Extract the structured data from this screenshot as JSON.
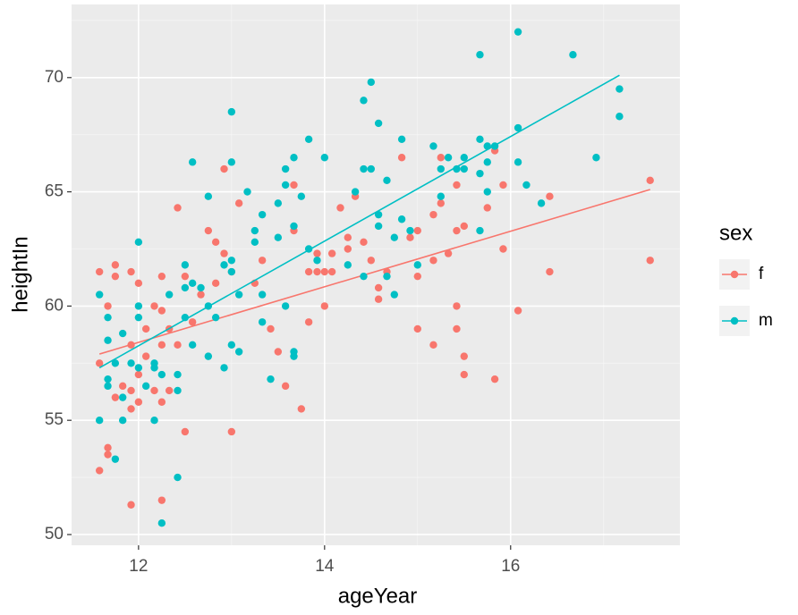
{
  "chart_data": {
    "type": "scatter",
    "x_label": "ageYear",
    "y_label": "heightIn",
    "legend_title": "sex",
    "xlim": [
      11.28,
      17.82
    ],
    "ylim": [
      49.53,
      73.2
    ],
    "xticks": [
      12,
      14,
      16
    ],
    "yticks": [
      50,
      55,
      60,
      65,
      70
    ],
    "grid": true,
    "legend": "right",
    "series": [
      {
        "name": "f",
        "color": "#F8766D",
        "x": [
          11.58,
          11.58,
          11.58,
          11.67,
          11.67,
          11.67,
          11.75,
          11.75,
          11.75,
          11.83,
          11.92,
          11.92,
          11.92,
          11.92,
          11.92,
          12.0,
          12.0,
          12.0,
          12.08,
          12.08,
          12.17,
          12.17,
          12.25,
          12.25,
          12.25,
          12.25,
          12.25,
          12.33,
          12.33,
          12.42,
          12.42,
          12.5,
          12.5,
          12.58,
          12.67,
          12.75,
          12.83,
          12.83,
          12.92,
          12.92,
          13.0,
          13.0,
          13.08,
          13.25,
          13.33,
          13.42,
          13.5,
          13.58,
          13.67,
          13.67,
          13.75,
          13.83,
          13.83,
          13.92,
          13.92,
          14.0,
          14.0,
          14.08,
          14.08,
          14.17,
          14.25,
          14.25,
          14.33,
          14.42,
          14.5,
          14.58,
          14.58,
          14.67,
          14.83,
          14.92,
          15.0,
          15.0,
          15.0,
          15.17,
          15.17,
          15.17,
          15.25,
          15.25,
          15.33,
          15.42,
          15.42,
          15.42,
          15.42,
          15.5,
          15.5,
          15.5,
          15.75,
          15.83,
          15.83,
          15.92,
          15.92,
          16.08,
          16.42,
          16.42,
          17.5,
          17.5
        ],
        "values": [
          61.5,
          57.5,
          52.8,
          60.0,
          53.8,
          53.5,
          61.8,
          61.3,
          56.0,
          56.5,
          61.5,
          58.3,
          56.3,
          55.5,
          51.3,
          61.0,
          57.0,
          55.8,
          59.0,
          57.8,
          60.0,
          56.3,
          61.3,
          59.8,
          58.3,
          55.8,
          51.5,
          59.0,
          56.3,
          64.3,
          58.3,
          61.3,
          54.5,
          59.3,
          60.5,
          63.3,
          62.8,
          61.0,
          66.0,
          62.3,
          54.5,
          61.5,
          64.5,
          61.0,
          62.0,
          59.0,
          58.0,
          56.5,
          65.3,
          63.3,
          55.5,
          59.3,
          61.5,
          62.3,
          61.5,
          61.5,
          60.0,
          62.3,
          61.5,
          64.3,
          63.0,
          62.5,
          64.8,
          62.8,
          62.0,
          60.8,
          60.3,
          61.5,
          66.5,
          63.0,
          63.3,
          61.3,
          59.0,
          64.0,
          62.0,
          58.3,
          66.5,
          64.5,
          62.3,
          65.3,
          63.3,
          60.0,
          59.0,
          63.5,
          57.8,
          57.0,
          64.3,
          66.8,
          56.8,
          65.3,
          62.5,
          59.8,
          64.8,
          61.5,
          65.5,
          62.0
        ],
        "fit": {
          "x": [
            11.58,
            17.5
          ],
          "values": [
            57.9,
            65.1
          ]
        }
      },
      {
        "name": "m",
        "color": "#00BFC4",
        "x": [
          11.58,
          11.58,
          11.67,
          11.67,
          11.67,
          11.67,
          11.75,
          11.75,
          11.83,
          11.83,
          11.83,
          11.92,
          12.0,
          12.0,
          12.0,
          12.0,
          12.08,
          12.17,
          12.17,
          12.17,
          12.25,
          12.25,
          12.33,
          12.42,
          12.42,
          12.42,
          12.5,
          12.5,
          12.5,
          12.58,
          12.58,
          12.58,
          12.67,
          12.75,
          12.75,
          12.75,
          12.83,
          12.92,
          12.92,
          13.0,
          13.0,
          13.0,
          13.0,
          13.0,
          13.08,
          13.08,
          13.17,
          13.25,
          13.25,
          13.33,
          13.33,
          13.33,
          13.42,
          13.5,
          13.5,
          13.58,
          13.58,
          13.58,
          13.67,
          13.67,
          13.67,
          13.67,
          13.75,
          13.83,
          13.83,
          13.92,
          14.0,
          14.25,
          14.33,
          14.42,
          14.42,
          14.42,
          14.5,
          14.5,
          14.58,
          14.58,
          14.58,
          14.67,
          14.67,
          14.75,
          14.75,
          14.83,
          14.83,
          14.92,
          15.0,
          15.17,
          15.25,
          15.25,
          15.33,
          15.42,
          15.5,
          15.5,
          15.67,
          15.67,
          15.67,
          15.67,
          15.75,
          15.75,
          15.75,
          15.83,
          16.08,
          16.08,
          16.08,
          16.17,
          16.33,
          16.67,
          16.92,
          17.17,
          17.17
        ],
        "values": [
          60.5,
          55.0,
          59.5,
          58.5,
          56.8,
          56.5,
          57.5,
          53.3,
          58.8,
          56.0,
          55.0,
          57.5,
          62.8,
          60.0,
          59.5,
          57.3,
          56.5,
          57.5,
          57.3,
          55.0,
          57.0,
          50.5,
          60.5,
          57.0,
          56.3,
          52.5,
          61.8,
          60.8,
          59.5,
          66.3,
          61.0,
          58.3,
          60.8,
          64.8,
          60.0,
          57.8,
          59.5,
          61.8,
          57.3,
          68.5,
          66.3,
          62.0,
          61.5,
          58.3,
          60.5,
          58.0,
          65.0,
          63.3,
          62.8,
          64.0,
          60.5,
          59.3,
          56.8,
          64.5,
          63.0,
          66.0,
          65.3,
          60.0,
          66.5,
          63.5,
          58.0,
          57.8,
          64.8,
          67.3,
          62.5,
          62.0,
          66.5,
          61.8,
          65.0,
          69.0,
          66.0,
          61.3,
          69.8,
          66.0,
          68.0,
          64.0,
          63.5,
          65.5,
          61.3,
          63.0,
          60.5,
          67.3,
          63.8,
          63.3,
          61.8,
          67.0,
          66.0,
          64.8,
          66.5,
          66.0,
          66.5,
          66.0,
          71.0,
          67.3,
          65.8,
          63.3,
          67.0,
          66.3,
          65.0,
          67.0,
          72.0,
          67.8,
          66.3,
          65.3,
          64.5,
          71.0,
          66.5,
          69.5,
          68.3
        ],
        "fit": {
          "x": [
            11.58,
            17.17
          ],
          "values": [
            57.3,
            70.1
          ]
        }
      }
    ]
  }
}
